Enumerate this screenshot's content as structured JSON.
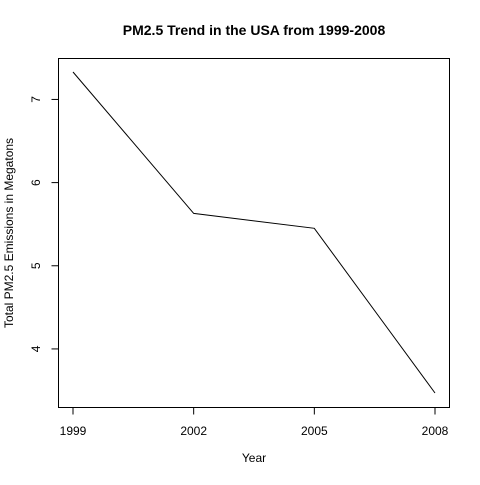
{
  "chart_data": {
    "type": "line",
    "title": "PM2.5 Trend in the USA from 1999-2008",
    "xlabel": "Year",
    "ylabel": "Total PM2.5 Emissions in Megatons",
    "x": [
      1999,
      2002,
      2005,
      2008
    ],
    "x_tick_labels": [
      "1999",
      "2002",
      "2005",
      "2008"
    ],
    "y_ticks": [
      4,
      5,
      6,
      7
    ],
    "y_tick_labels": [
      "4",
      "5",
      "6",
      "7"
    ],
    "xlim": [
      1999,
      2008
    ],
    "ylim": [
      3.47,
      7.33
    ],
    "grid": false,
    "series": [
      {
        "values": [
          7.33,
          5.63,
          5.45,
          3.47
        ],
        "color": "#000000"
      }
    ]
  }
}
